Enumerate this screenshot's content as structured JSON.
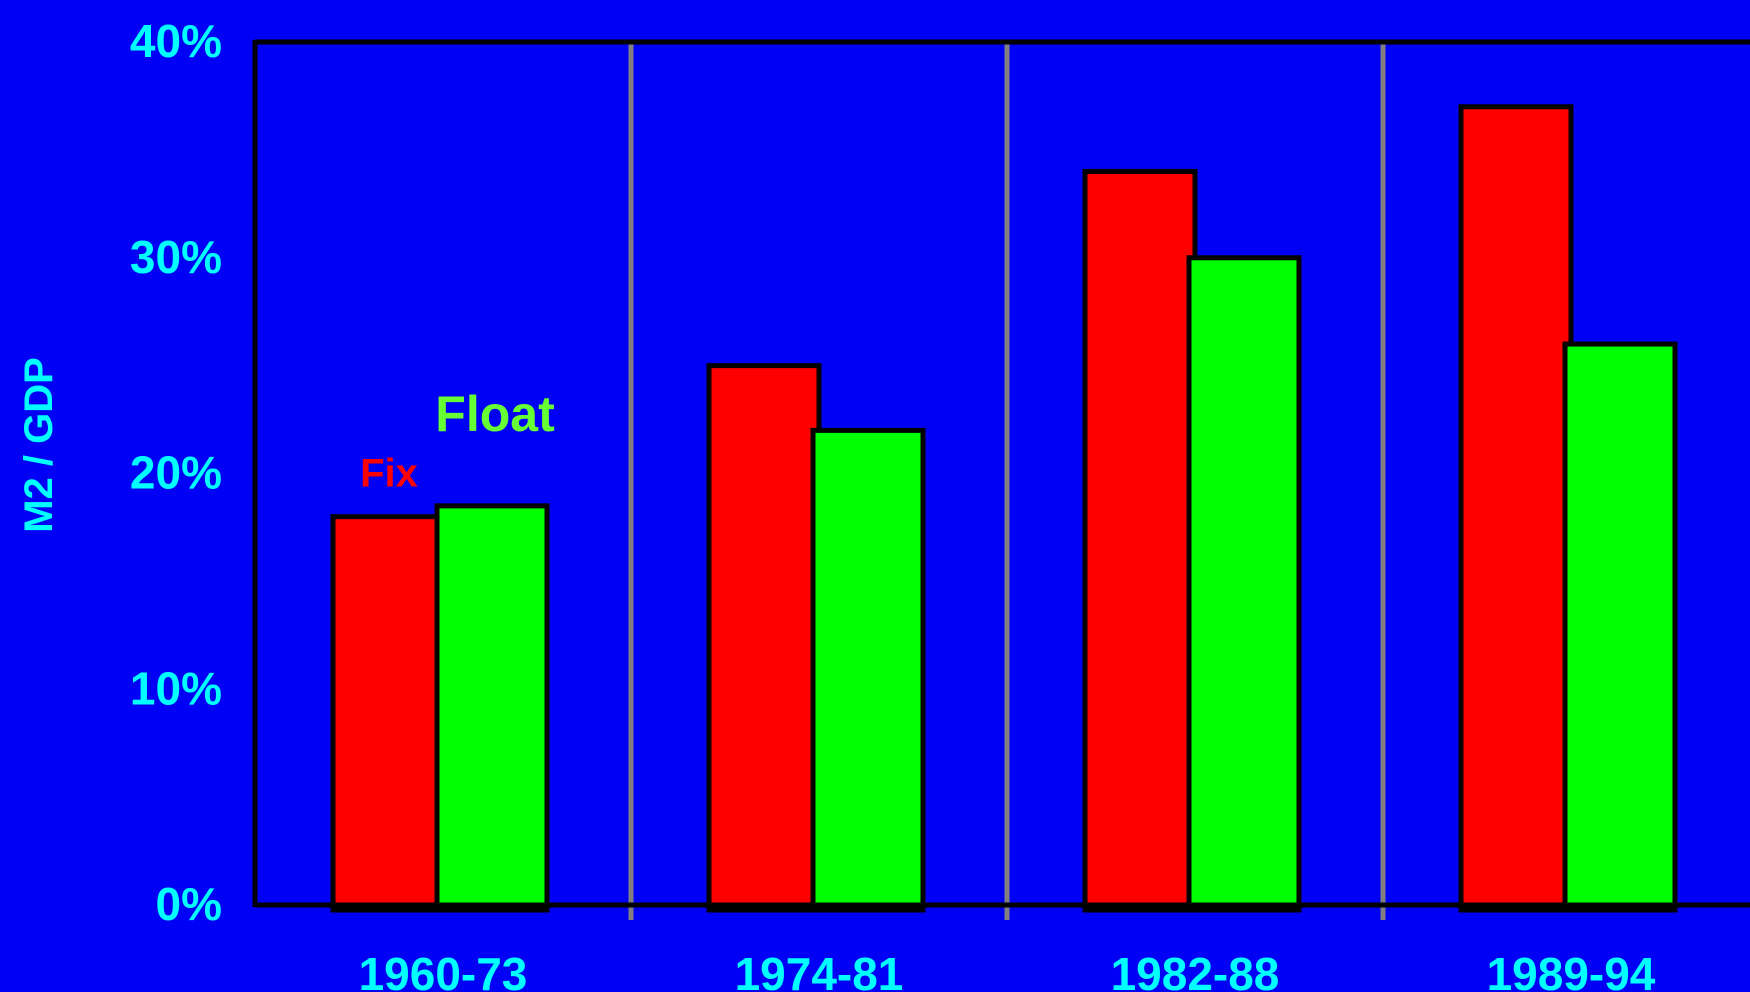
{
  "chart_data": {
    "type": "bar",
    "ylabel": "M2 / GDP",
    "ylim": [
      0,
      40
    ],
    "ytick_labels": [
      "0%",
      "10%",
      "20%",
      "30%",
      "40%"
    ],
    "categories": [
      "1960-73",
      "1974-81",
      "1982-88",
      "1989-94"
    ],
    "series": [
      {
        "name": "Fix",
        "values": [
          18,
          25,
          34,
          37
        ],
        "color": "#ff0000"
      },
      {
        "name": "Float",
        "values": [
          18.5,
          22,
          30,
          26
        ],
        "color": "#00ff00"
      }
    ],
    "grid": false,
    "legend": "inline labels above the 1960-73 bars",
    "colors": {
      "background": "#0000f5",
      "text": "#00ffff",
      "separator": "#808080"
    }
  }
}
